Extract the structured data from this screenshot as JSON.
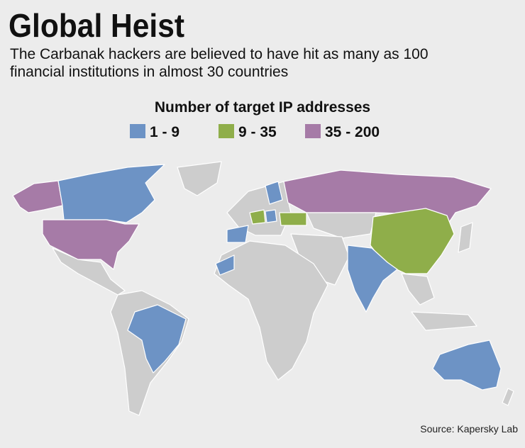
{
  "header": {
    "title": "Global Heist",
    "subtitle_lines": [
      "The Carbanak hackers are believed to have hit as many as 100",
      "financial institutions in almost 30 countries"
    ]
  },
  "legend": {
    "title": "Number of target IP addresses",
    "items": [
      {
        "label": "1 - 9",
        "color": "#6d93c5"
      },
      {
        "label": "9 - 35",
        "color": "#8fae4a"
      },
      {
        "label": "35 - 200",
        "color": "#a67ba7"
      }
    ]
  },
  "source": "Source: Kapersky Lab"
}
